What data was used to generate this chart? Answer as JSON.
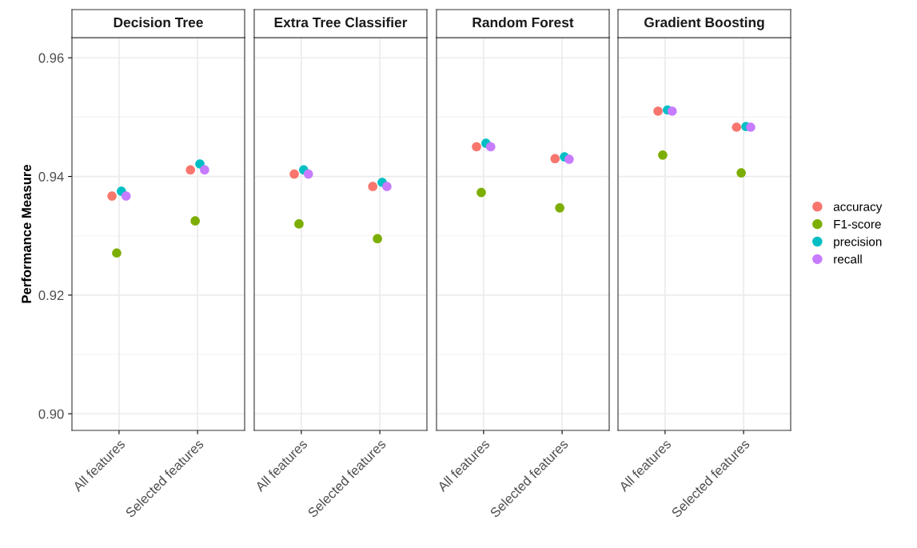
{
  "chart_data": [
    {
      "type": "scatter",
      "title": "Decision Tree",
      "ylabel": "Performance Measure",
      "categories": [
        "All features",
        "Selected features"
      ],
      "ylim": [
        0.8972,
        0.9634
      ],
      "yticks": [
        {
          "value": 0.9,
          "label": "0.90"
        },
        {
          "value": 0.92,
          "label": "0.92"
        },
        {
          "value": 0.94,
          "label": "0.94"
        },
        {
          "value": 0.96,
          "label": "0.96"
        }
      ],
      "grid": true,
      "marker": "circle",
      "legend": false,
      "series": [
        {
          "color": "#f8766d",
          "values": [
            0.9367,
            0.9411
          ]
        },
        {
          "color": "#7cae00",
          "values": [
            0.9271,
            0.9325
          ]
        },
        {
          "color": "#00bfc4",
          "values": [
            0.9375,
            0.9421
          ]
        },
        {
          "color": "#c77cff",
          "values": [
            0.9367,
            0.9411
          ]
        }
      ]
    },
    {
      "type": "scatter",
      "title": "Extra Tree Classifier",
      "categories": [
        "All features",
        "Selected features"
      ],
      "ylim": [
        0.8972,
        0.9634
      ],
      "yticks": [
        0.9,
        0.92,
        0.94,
        0.96
      ],
      "grid": true,
      "marker": "circle",
      "legend": false,
      "tick_labels": "x",
      "series": [
        {
          "color": "#f8766d",
          "values": [
            0.9404,
            0.9383
          ]
        },
        {
          "color": "#7cae00",
          "values": [
            0.932,
            0.9295
          ]
        },
        {
          "color": "#00bfc4",
          "values": [
            0.9411,
            0.939
          ]
        },
        {
          "color": "#c77cff",
          "values": [
            0.9404,
            0.9383
          ]
        }
      ]
    },
    {
      "type": "scatter",
      "title": "Random Forest",
      "categories": [
        "All features",
        "Selected features"
      ],
      "ylim": [
        0.8972,
        0.9634
      ],
      "yticks": [
        0.9,
        0.92,
        0.94,
        0.96
      ],
      "grid": true,
      "marker": "circle",
      "legend": false,
      "tick_labels": "x",
      "series": [
        {
          "color": "#f8766d",
          "values": [
            0.945,
            0.943
          ]
        },
        {
          "color": "#7cae00",
          "values": [
            0.9373,
            0.9347
          ]
        },
        {
          "color": "#00bfc4",
          "values": [
            0.9456,
            0.9433
          ]
        },
        {
          "color": "#c77cff",
          "values": [
            0.945,
            0.9429
          ]
        }
      ]
    },
    {
      "type": "scatter",
      "title": "Gradient Boosting",
      "categories": [
        "All features",
        "Selected features"
      ],
      "ylim": [
        0.8972,
        0.9634
      ],
      "yticks": [
        0.9,
        0.92,
        0.94,
        0.96
      ],
      "grid": true,
      "marker": "circle",
      "legend": "right",
      "tick_labels": "x",
      "series": [
        {
          "name": "accuracy",
          "color": "#f8766d",
          "values": [
            0.951,
            0.9483
          ]
        },
        {
          "name": "F1-score",
          "color": "#7cae00",
          "values": [
            0.9436,
            0.9406
          ]
        },
        {
          "name": "precision",
          "color": "#00bfc4",
          "values": [
            0.9512,
            0.9484
          ]
        },
        {
          "name": "recall",
          "color": "#c77cff",
          "values": [
            0.951,
            0.9483
          ]
        }
      ]
    }
  ]
}
